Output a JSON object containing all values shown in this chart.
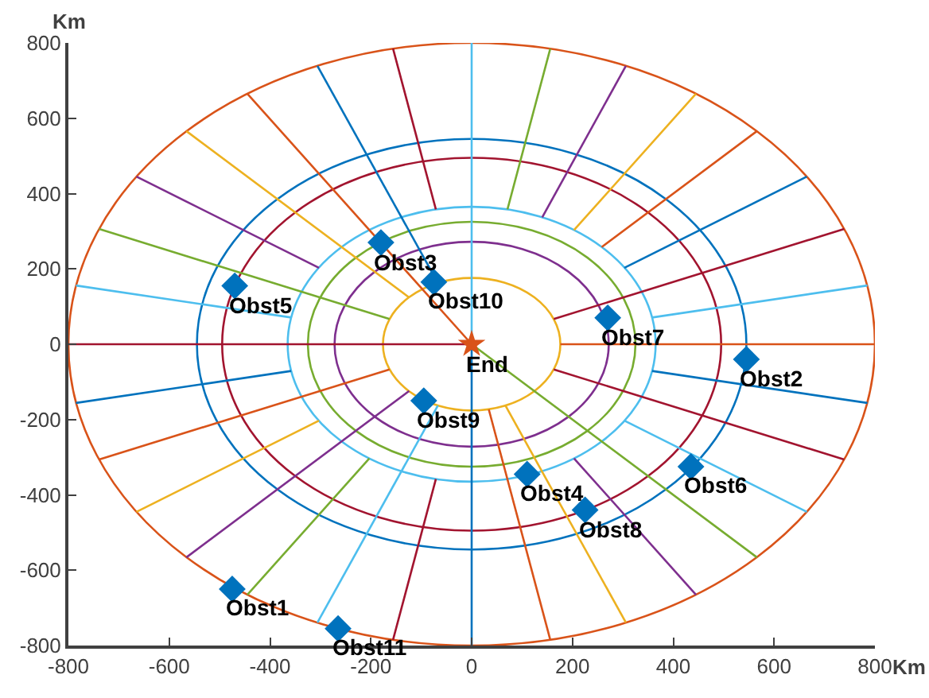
{
  "chart_data": {
    "type": "scatter",
    "xlabel": "Km",
    "ylabel": "Km",
    "xlim": [
      -800,
      800
    ],
    "ylim": [
      -800,
      800
    ],
    "xticks": [
      -800,
      -600,
      -400,
      -200,
      0,
      200,
      400,
      600,
      800
    ],
    "yticks": [
      -800,
      -600,
      -400,
      -200,
      0,
      200,
      400,
      600,
      800
    ],
    "grid": false,
    "series": [
      {
        "type": "line",
        "marker": "none",
        "color": "#a2142f",
        "x": [
          0,
          -800
        ],
        "values": [
          0,
          0
        ]
      },
      {
        "type": "line",
        "marker": "none",
        "color": "#a2142f",
        "x": [
          -71,
          -156
        ],
        "values": [
          358,
          785
        ]
      },
      {
        "type": "line",
        "marker": "none",
        "color": "#a2142f",
        "x": [
          163,
          739
        ],
        "values": [
          67,
          306
        ]
      },
      {
        "type": "line",
        "marker": "none",
        "color": "#a2142f",
        "x": [
          163,
          739
        ],
        "values": [
          -67,
          -306
        ]
      },
      {
        "type": "line",
        "marker": "none",
        "color": "#a2142f",
        "x": [
          -71,
          -156
        ],
        "values": [
          -358,
          -785
        ]
      },
      {
        "type": "line",
        "marker": "none",
        "color": "#4dbeee",
        "x": [
          -358,
          -785
        ],
        "values": [
          71,
          156
        ]
      },
      {
        "type": "line",
        "marker": "none",
        "color": "#4dbeee",
        "x": [
          0,
          0
        ],
        "values": [
          0,
          800
        ]
      },
      {
        "type": "line",
        "marker": "none",
        "color": "#4dbeee",
        "x": [
          358,
          785
        ],
        "values": [
          71,
          156
        ]
      },
      {
        "type": "line",
        "marker": "none",
        "color": "#4dbeee",
        "x": [
          303,
          665
        ],
        "values": [
          -203,
          -445
        ]
      },
      {
        "type": "line",
        "marker": "none",
        "color": "#4dbeee",
        "x": [
          -67,
          -306
        ],
        "values": [
          -163,
          -739
        ]
      },
      {
        "type": "line",
        "marker": "none",
        "color": "#77ac30",
        "x": [
          -163,
          -739
        ],
        "values": [
          67,
          306
        ]
      },
      {
        "type": "line",
        "marker": "none",
        "color": "#77ac30",
        "x": [
          71,
          156
        ],
        "values": [
          358,
          785
        ]
      },
      {
        "type": "line",
        "marker": "none",
        "color": "#77ac30",
        "x": [
          0,
          566
        ],
        "values": [
          0,
          -566
        ]
      },
      {
        "type": "line",
        "marker": "none",
        "color": "#77ac30",
        "x": [
          -203,
          -445
        ],
        "values": [
          -303,
          -665
        ]
      },
      {
        "type": "line",
        "marker": "none",
        "color": "#7e2f8e",
        "x": [
          -303,
          -665
        ],
        "values": [
          203,
          445
        ]
      },
      {
        "type": "line",
        "marker": "none",
        "color": "#7e2f8e",
        "x": [
          140,
          306
        ],
        "values": [
          337,
          739
        ]
      },
      {
        "type": "line",
        "marker": "none",
        "color": "#7e2f8e",
        "x": [
          203,
          445
        ],
        "values": [
          -303,
          -665
        ]
      },
      {
        "type": "line",
        "marker": "none",
        "color": "#7e2f8e",
        "x": [
          -124,
          -566
        ],
        "values": [
          -124,
          -566
        ]
      },
      {
        "type": "line",
        "marker": "none",
        "color": "#edb120",
        "x": [
          -124,
          -566
        ],
        "values": [
          124,
          566
        ]
      },
      {
        "type": "line",
        "marker": "none",
        "color": "#edb120",
        "x": [
          203,
          445
        ],
        "values": [
          303,
          665
        ]
      },
      {
        "type": "line",
        "marker": "none",
        "color": "#edb120",
        "x": [
          67,
          306
        ],
        "values": [
          -163,
          -739
        ]
      },
      {
        "type": "line",
        "marker": "none",
        "color": "#edb120",
        "x": [
          -303,
          -665
        ],
        "values": [
          -203,
          -445
        ]
      },
      {
        "type": "line",
        "marker": "none",
        "color": "#d95319",
        "x": [
          0,
          -445
        ],
        "values": [
          0,
          665
        ]
      },
      {
        "type": "line",
        "marker": "none",
        "color": "#d95319",
        "x": [
          258,
          566
        ],
        "values": [
          258,
          566
        ]
      },
      {
        "type": "line",
        "marker": "none",
        "color": "#d95319",
        "x": [
          176,
          800
        ],
        "values": [
          0,
          0
        ]
      },
      {
        "type": "line",
        "marker": "none",
        "color": "#d95319",
        "x": [
          34,
          156
        ],
        "values": [
          -173,
          -785
        ]
      },
      {
        "type": "line",
        "marker": "none",
        "color": "#d95319",
        "x": [
          -163,
          -739
        ],
        "values": [
          -67,
          -306
        ]
      },
      {
        "type": "line",
        "marker": "none",
        "color": "#0072bd",
        "x": [
          -67,
          -306
        ],
        "values": [
          163,
          739
        ]
      },
      {
        "type": "line",
        "marker": "none",
        "color": "#0072bd",
        "x": [
          303,
          665
        ],
        "values": [
          203,
          445
        ]
      },
      {
        "type": "line",
        "marker": "none",
        "color": "#0072bd",
        "x": [
          358,
          785
        ],
        "values": [
          -71,
          -156
        ]
      },
      {
        "type": "line",
        "marker": "none",
        "color": "#0072bd",
        "x": [
          0,
          0
        ],
        "values": [
          0,
          -800
        ]
      },
      {
        "type": "line",
        "marker": "none",
        "color": "#0072bd",
        "x": [
          -358,
          -785
        ],
        "values": [
          -71,
          -156
        ]
      },
      {
        "marker": "diamond",
        "color": "#0072bd",
        "x": [
          -475,
          545,
          -180,
          110,
          -470,
          435,
          270,
          225,
          -95,
          -75,
          -265
        ],
        "values": [
          -650,
          -40,
          270,
          -345,
          155,
          -325,
          70,
          -440,
          -150,
          165,
          -755
        ]
      },
      {
        "marker": "star",
        "color": "#d95319",
        "x": [
          0
        ],
        "values": [
          0
        ]
      }
    ],
    "annotations": [
      {
        "text": "Obst1",
        "x": -475,
        "y": -650
      },
      {
        "text": "Obst2",
        "x": 545,
        "y": -40
      },
      {
        "text": "Obst3",
        "x": -180,
        "y": 270
      },
      {
        "text": "Obst4",
        "x": 110,
        "y": -345
      },
      {
        "text": "Obst5",
        "x": -470,
        "y": 155
      },
      {
        "text": "Obst6",
        "x": 435,
        "y": -325
      },
      {
        "text": "Obst7",
        "x": 270,
        "y": 70
      },
      {
        "text": "Obst8",
        "x": 225,
        "y": -440
      },
      {
        "text": "Obst9",
        "x": -95,
        "y": -150
      },
      {
        "text": "Obst10",
        "x": -75,
        "y": 165
      },
      {
        "text": "Obst11",
        "x": -265,
        "y": -755
      },
      {
        "text": "End",
        "x": 0,
        "y": 0
      }
    ]
  }
}
